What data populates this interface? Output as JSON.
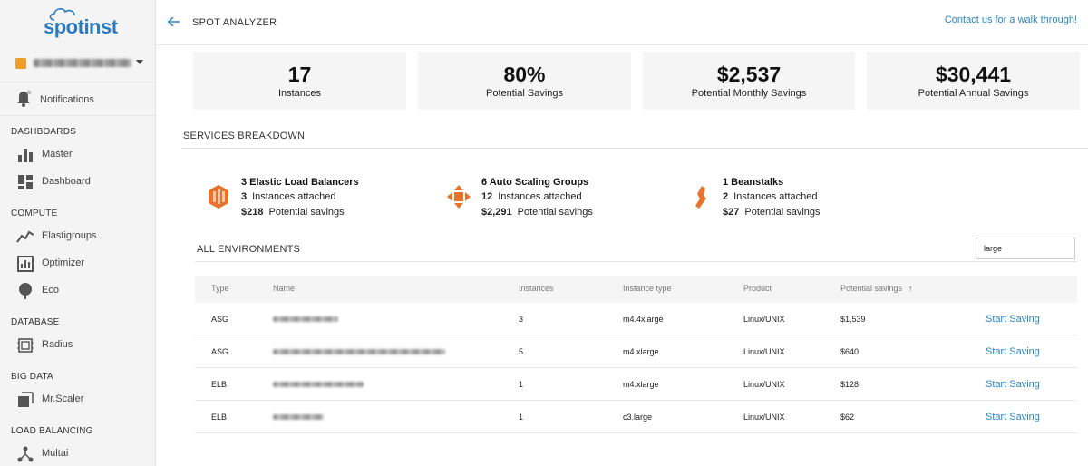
{
  "brand": {
    "logo_text": "spotinst"
  },
  "account": {
    "name": ""
  },
  "sidebar": {
    "notifications": "Notifications",
    "sections": [
      {
        "label": "DASHBOARDS",
        "items": [
          {
            "label": "Master",
            "icon": "bar-chart-icon"
          },
          {
            "label": "Dashboard",
            "icon": "dashboard-grid-icon"
          }
        ]
      },
      {
        "label": "COMPUTE",
        "items": [
          {
            "label": "Elastigroups",
            "icon": "line-chart-icon"
          },
          {
            "label": "Optimizer",
            "icon": "optimizer-icon"
          },
          {
            "label": "Eco",
            "icon": "eco-tree-icon"
          }
        ]
      },
      {
        "label": "DATABASE",
        "items": [
          {
            "label": "Radius",
            "icon": "chip-icon"
          }
        ]
      },
      {
        "label": "BIG DATA",
        "items": [
          {
            "label": "Mr.Scaler",
            "icon": "scaler-icon"
          }
        ]
      },
      {
        "label": "LOAD BALANCING",
        "items": [
          {
            "label": "Multai",
            "icon": "network-icon"
          }
        ]
      }
    ]
  },
  "header": {
    "title": "SPOT ANALYZER",
    "contact_link": "Contact us for a walk through!"
  },
  "stats": [
    {
      "value": "17",
      "label": "Instances"
    },
    {
      "value": "80%",
      "label": "Potential Savings"
    },
    {
      "value": "$2,537",
      "label": "Potential Monthly Savings"
    },
    {
      "value": "$30,441",
      "label": "Potential Annual Savings"
    }
  ],
  "breakdown": {
    "title": "SERVICES BREAKDOWN",
    "services": [
      {
        "title": "3 Elastic Load Balancers",
        "instances_count": "3",
        "instances_label": "Instances attached",
        "savings_value": "$218",
        "savings_label": "Potential savings",
        "icon": "elb-icon"
      },
      {
        "title": "6 Auto Scaling Groups",
        "instances_count": "12",
        "instances_label": "Instances attached",
        "savings_value": "$2,291",
        "savings_label": "Potential savings",
        "icon": "asg-icon"
      },
      {
        "title": "1 Beanstalks",
        "instances_count": "2",
        "instances_label": "Instances attached",
        "savings_value": "$27",
        "savings_label": "Potential savings",
        "icon": "beanstalk-icon"
      }
    ]
  },
  "environments": {
    "title": "ALL ENVIRONMENTS",
    "filter_value": "large",
    "columns": [
      "Type",
      "Name",
      "Instances",
      "Instance type",
      "Product",
      "Potential savings"
    ],
    "rows": [
      {
        "type": "ASG",
        "instances": "3",
        "instance_type": "m4.4xlarge",
        "product": "Linux/UNIX",
        "savings": "$1,539",
        "action": "Start Saving"
      },
      {
        "type": "ASG",
        "instances": "5",
        "instance_type": "m4.xlarge",
        "product": "Linux/UNIX",
        "savings": "$640",
        "action": "Start Saving"
      },
      {
        "type": "ELB",
        "instances": "1",
        "instance_type": "m4.xlarge",
        "product": "Linux/UNIX",
        "savings": "$128",
        "action": "Start Saving"
      },
      {
        "type": "ELB",
        "instances": "1",
        "instance_type": "c3.large",
        "product": "Linux/UNIX",
        "savings": "$62",
        "action": "Start Saving"
      }
    ]
  },
  "colors": {
    "accent": "#2a86c4",
    "brand": "#2a7bc0",
    "aws_orange": "#e8732a"
  }
}
